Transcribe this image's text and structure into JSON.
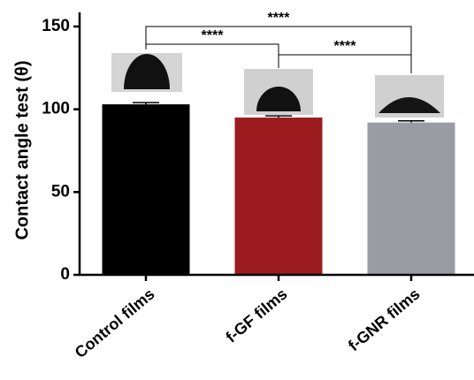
{
  "chart_data": {
    "type": "bar",
    "ylabel": "Contact angle test (θ)",
    "categories": [
      "Control films",
      "f-GF films",
      "f-GNR films"
    ],
    "values": [
      103,
      95,
      92
    ],
    "errors": [
      1,
      1,
      1
    ],
    "colors": [
      "#000000",
      "#9b1b1f",
      "#9a9ca3"
    ],
    "ylim": [
      0,
      150
    ],
    "yticks": [
      0,
      50,
      100,
      150
    ],
    "significance": [
      "****",
      "****",
      "****"
    ]
  }
}
